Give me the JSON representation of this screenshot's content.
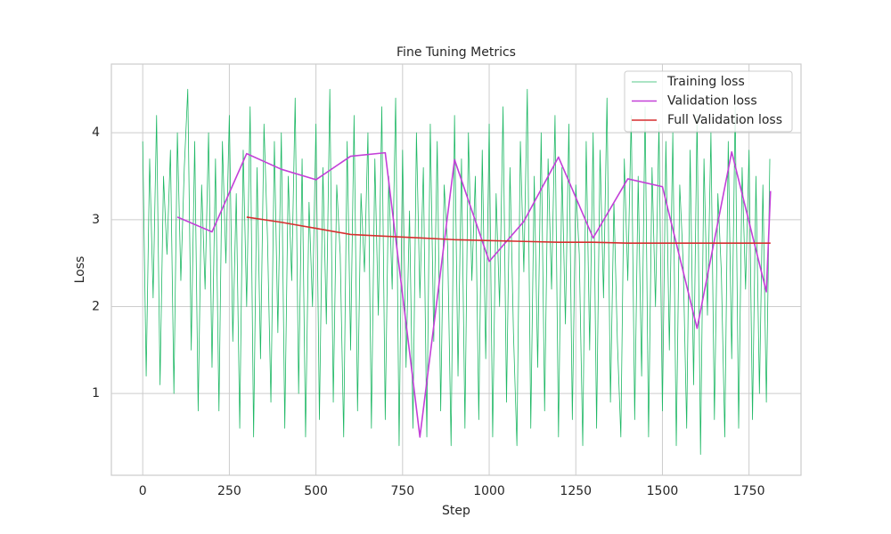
{
  "chart_data": {
    "type": "line",
    "title": "Fine Tuning Metrics",
    "x_label": "Step",
    "y_label": "Loss",
    "xlim": [
      -90.5,
      1900
    ],
    "ylim": [
      0.06,
      4.79
    ],
    "xticks": [
      0,
      250,
      500,
      750,
      1000,
      1250,
      1500,
      1750
    ],
    "yticks": [
      1,
      2,
      3,
      4
    ],
    "grid": true,
    "legend": "upper right",
    "series": [
      {
        "name": "Training loss",
        "color": "#1fb865",
        "width": 0.8,
        "x": [
          0,
          10,
          20,
          30,
          40,
          50,
          60,
          70,
          80,
          90,
          100,
          110,
          120,
          130,
          140,
          150,
          160,
          170,
          180,
          190,
          200,
          210,
          220,
          230,
          240,
          250,
          260,
          270,
          280,
          290,
          300,
          310,
          320,
          330,
          340,
          350,
          360,
          370,
          380,
          390,
          400,
          410,
          420,
          430,
          440,
          450,
          460,
          470,
          480,
          490,
          500,
          510,
          520,
          530,
          540,
          550,
          560,
          570,
          580,
          590,
          600,
          610,
          620,
          630,
          640,
          650,
          660,
          670,
          680,
          690,
          700,
          710,
          720,
          730,
          740,
          750,
          760,
          770,
          780,
          790,
          800,
          810,
          820,
          830,
          840,
          850,
          860,
          870,
          880,
          890,
          900,
          910,
          920,
          930,
          940,
          950,
          960,
          970,
          980,
          990,
          1000,
          1010,
          1020,
          1030,
          1040,
          1050,
          1060,
          1070,
          1080,
          1090,
          1100,
          1110,
          1120,
          1130,
          1140,
          1150,
          1160,
          1170,
          1180,
          1190,
          1200,
          1210,
          1220,
          1230,
          1240,
          1250,
          1260,
          1270,
          1280,
          1290,
          1300,
          1310,
          1320,
          1330,
          1340,
          1350,
          1360,
          1370,
          1380,
          1390,
          1400,
          1410,
          1420,
          1430,
          1440,
          1450,
          1460,
          1470,
          1480,
          1490,
          1500,
          1510,
          1520,
          1530,
          1540,
          1550,
          1560,
          1570,
          1580,
          1590,
          1600,
          1610,
          1620,
          1630,
          1640,
          1650,
          1660,
          1670,
          1680,
          1690,
          1700,
          1710,
          1720,
          1730,
          1740,
          1750,
          1760,
          1770,
          1780,
          1790,
          1800,
          1810
        ],
        "values": [
          3.9,
          1.2,
          3.7,
          2.1,
          4.2,
          1.1,
          3.5,
          2.6,
          3.8,
          1.0,
          4.0,
          2.3,
          3.6,
          4.5,
          1.5,
          3.9,
          0.8,
          3.4,
          2.2,
          4.0,
          1.3,
          3.7,
          0.8,
          3.9,
          2.5,
          4.2,
          1.6,
          3.3,
          0.6,
          3.8,
          2.0,
          4.3,
          0.5,
          3.6,
          1.4,
          4.1,
          2.8,
          0.9,
          3.9,
          1.7,
          4.0,
          0.6,
          3.5,
          2.3,
          4.4,
          1.0,
          3.7,
          0.5,
          3.2,
          2.0,
          4.1,
          0.7,
          3.6,
          1.8,
          4.5,
          0.9,
          3.4,
          2.6,
          0.5,
          3.9,
          1.5,
          4.2,
          0.8,
          3.3,
          2.4,
          4.0,
          0.6,
          3.7,
          1.9,
          4.3,
          0.7,
          3.5,
          2.2,
          4.4,
          0.4,
          3.8,
          1.3,
          3.1,
          0.6,
          4.0,
          2.1,
          3.6,
          0.5,
          4.1,
          1.6,
          3.9,
          0.8,
          3.4,
          2.7,
          0.4,
          4.2,
          1.2,
          3.7,
          0.6,
          4.0,
          2.3,
          3.5,
          0.7,
          3.8,
          1.4,
          4.1,
          0.5,
          3.3,
          2.0,
          4.3,
          0.9,
          3.6,
          1.7,
          0.4,
          3.9,
          2.4,
          4.5,
          0.6,
          3.5,
          1.3,
          4.0,
          0.8,
          3.7,
          2.2,
          4.2,
          0.5,
          3.6,
          1.8,
          4.1,
          0.7,
          3.4,
          2.6,
          0.4,
          3.9,
          1.5,
          4.0,
          0.6,
          3.8,
          2.1,
          4.4,
          0.9,
          3.2,
          1.6,
          0.5,
          3.7,
          2.3,
          4.2,
          0.7,
          3.5,
          1.2,
          4.3,
          0.5,
          3.6,
          2.0,
          4.1,
          0.8,
          3.9,
          1.5,
          4.0,
          0.4,
          3.4,
          2.5,
          0.6,
          3.8,
          1.1,
          4.2,
          0.3,
          3.7,
          1.9,
          4.0,
          0.7,
          3.3,
          2.4,
          0.5,
          3.9,
          1.4,
          4.3,
          0.6,
          3.6,
          2.2,
          3.8,
          0.7,
          3.5,
          1.0,
          3.4,
          0.9,
          3.7
        ]
      },
      {
        "name": "Validation loss",
        "color": "#c340d8",
        "width": 1.6,
        "x": [
          100,
          200,
          300,
          400,
          500,
          600,
          700,
          800,
          900,
          1000,
          1100,
          1200,
          1300,
          1400,
          1500,
          1600,
          1700,
          1800,
          1812
        ],
        "values": [
          3.03,
          2.86,
          3.76,
          3.58,
          3.46,
          3.73,
          3.77,
          0.5,
          3.69,
          2.52,
          2.98,
          3.72,
          2.79,
          3.47,
          3.38,
          1.75,
          3.78,
          2.17,
          3.33
        ]
      },
      {
        "name": "Full Validation loss",
        "color": "#d62f2f",
        "width": 1.6,
        "x": [
          300,
          400,
          500,
          600,
          700,
          800,
          900,
          1000,
          1100,
          1200,
          1300,
          1400,
          1500,
          1600,
          1700,
          1812
        ],
        "values": [
          3.03,
          2.97,
          2.9,
          2.83,
          2.81,
          2.79,
          2.77,
          2.76,
          2.75,
          2.74,
          2.74,
          2.73,
          2.73,
          2.73,
          2.73,
          2.73
        ]
      }
    ]
  }
}
